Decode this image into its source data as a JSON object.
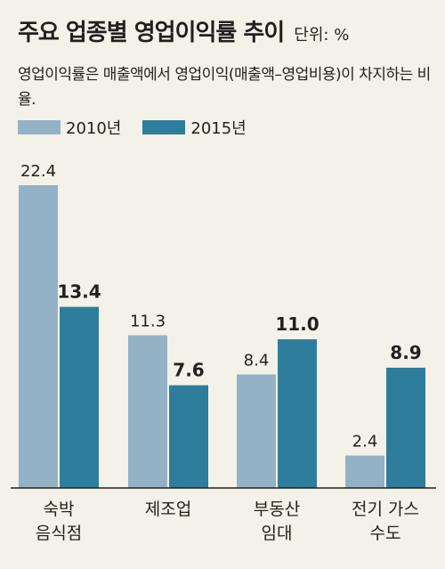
{
  "title": "주요 업종별 영업이익률 추이",
  "unit": "단위: %",
  "description": "영업이익률은 매출액에서 영업이익(매출액–영업비용)이 차지하는 비율.",
  "colors": {
    "background": "#f4f1e8",
    "s2010": "#93b2c6",
    "s2015": "#2f7d9c",
    "axis": "#231f20"
  },
  "chart_data": {
    "type": "bar",
    "title": "주요 업종별 영업이익률 추이",
    "categories": [
      [
        "숙박",
        "음식점"
      ],
      [
        "제조업"
      ],
      [
        "부동산",
        "임대"
      ],
      [
        "전기  가스",
        "수도"
      ]
    ],
    "series": [
      {
        "name": "2010년",
        "values": [
          22.4,
          11.3,
          8.4,
          2.4
        ],
        "labels": [
          "22.4",
          "11.3",
          "8.4",
          "2.4"
        ]
      },
      {
        "name": "2015년",
        "values": [
          13.4,
          7.6,
          11.0,
          8.9
        ],
        "labels": [
          "13.4",
          "7.6",
          "11.0",
          "8.9"
        ]
      }
    ],
    "ylim": [
      0,
      22.4
    ],
    "grid": false,
    "legend": "top-left"
  }
}
